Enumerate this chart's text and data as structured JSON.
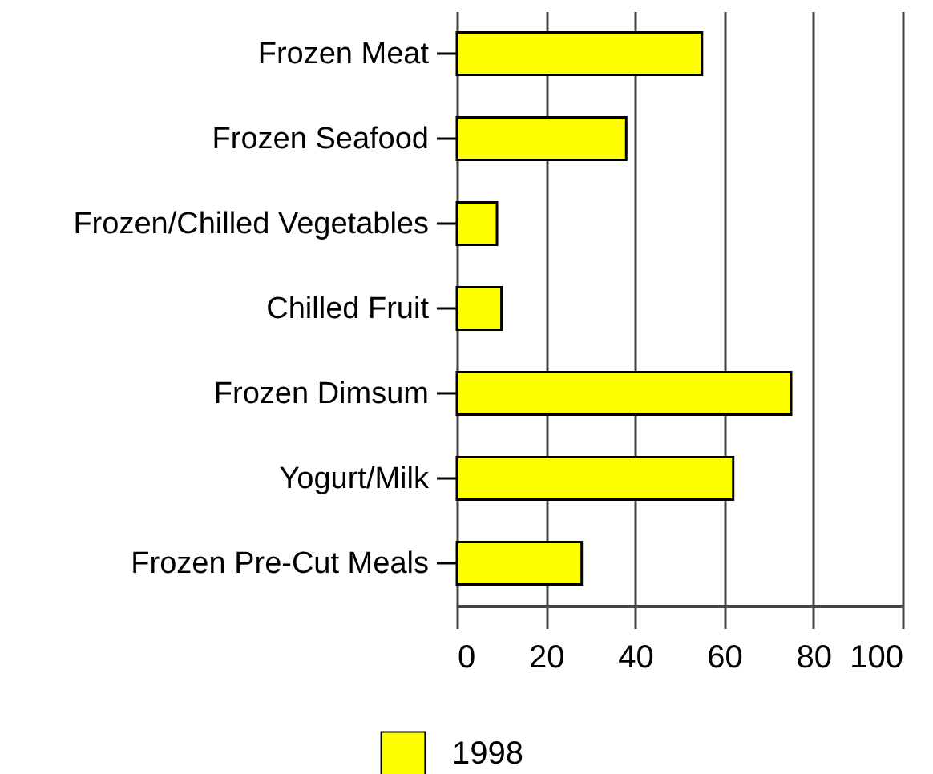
{
  "chart_data": {
    "type": "bar",
    "orientation": "horizontal",
    "categories": [
      "Frozen Meat",
      "Frozen Seafood",
      "Frozen/Chilled Vegetables",
      "Chilled Fruit",
      "Frozen Dimsum",
      "Yogurt/Milk",
      "Frozen Pre-Cut Meals"
    ],
    "series": [
      {
        "name": "1998",
        "color": "#ffff00",
        "values": [
          55,
          38,
          9,
          10,
          75,
          62,
          28
        ]
      }
    ],
    "xlim": [
      0,
      100
    ],
    "xticks": [
      0,
      20,
      40,
      60,
      80,
      100
    ],
    "grid": "x",
    "legend": "bottom"
  }
}
